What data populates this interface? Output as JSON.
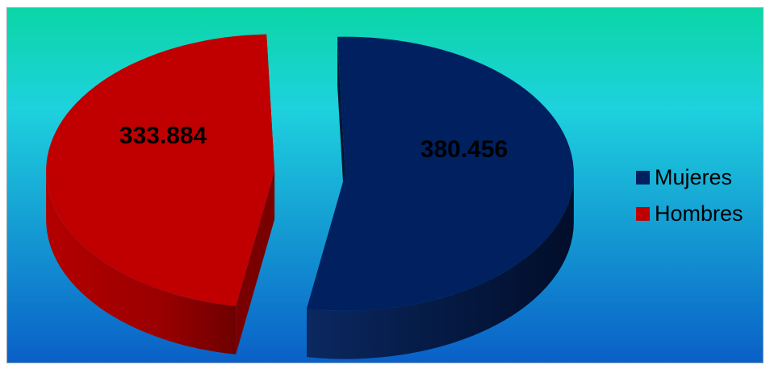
{
  "chart_data": {
    "type": "pie",
    "variant": "3d-exploded",
    "title": "",
    "slices": [
      {
        "name": "Mujeres",
        "value": 380456,
        "label": "380.456",
        "color": "#002060"
      },
      {
        "name": "Hombres",
        "value": 333884,
        "label": "333.884",
        "color": "#c00000"
      }
    ],
    "legend": {
      "placement": "right",
      "items": [
        {
          "label": "Mujeres",
          "color": "#002060"
        },
        {
          "label": "Hombres",
          "color": "#c00000"
        }
      ]
    },
    "background": {
      "gradient_top": "#0ad6a6",
      "gradient_mid": "#1ed2de",
      "gradient_bottom": "#0a5fc7"
    }
  }
}
